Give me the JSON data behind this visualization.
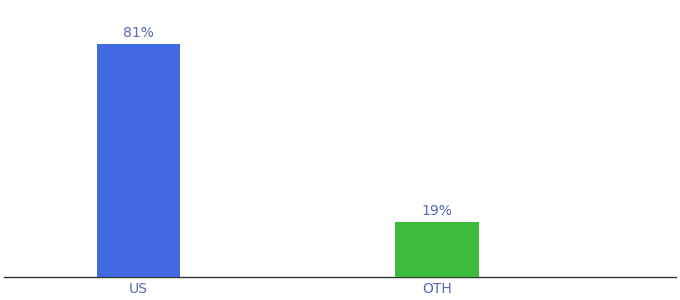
{
  "categories": [
    "US",
    "OTH"
  ],
  "values": [
    81,
    19
  ],
  "bar_colors": [
    "#4169e1",
    "#3dbb3d"
  ],
  "labels": [
    "81%",
    "19%"
  ],
  "background_color": "#ffffff",
  "bar_width": 0.28,
  "x_positions": [
    0,
    1
  ],
  "xlim": [
    -0.45,
    1.8
  ],
  "ylim": [
    0,
    95
  ],
  "label_fontsize": 10,
  "tick_fontsize": 10,
  "tick_color": "#5566bb",
  "label_color": "#5566bb"
}
